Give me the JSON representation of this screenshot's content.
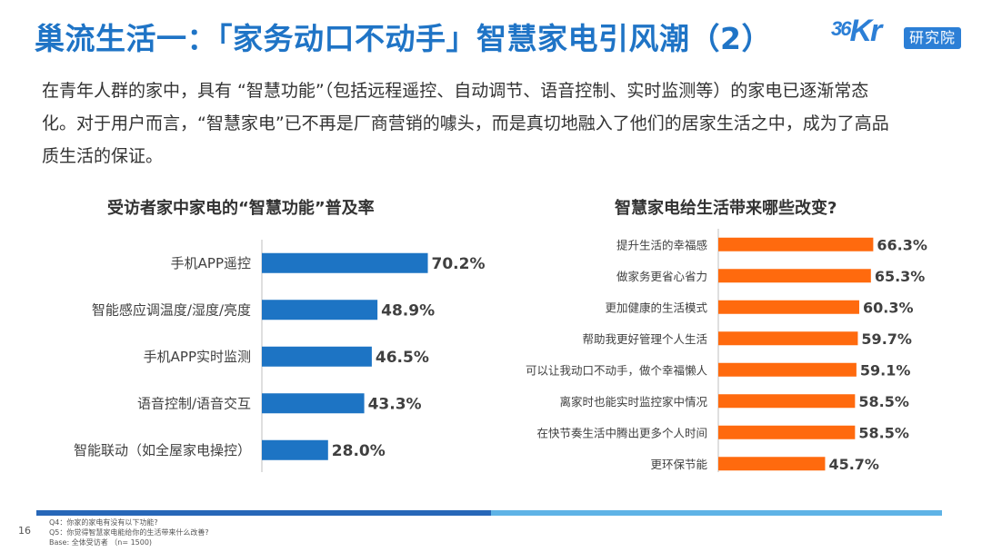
{
  "header": {
    "title": "巢流生活一：「家务动口不动手」智慧家电引风潮（2）",
    "logo_mark_big": "36",
    "logo_mark_kr": "Kr",
    "logo_tag": "研究院"
  },
  "intro": "在青年人群的家中，具有 “智慧功能”（包括远程遥控、自动调节、语音控制、实时监测等）的家电已逐渐常态化。对于用户而言，“智慧家电”已不再是厂商营销的噱头，而是真切地融入了他们的居家生活之中，成为了高品质生活的保证。",
  "colors": {
    "blue_bar": "#1d74c4",
    "orange_bar": "#ff6a0e",
    "title_blue": "#1f74c6"
  },
  "chart_data": [
    {
      "type": "bar",
      "orientation": "horizontal",
      "title": "受访者家中家电的“智慧功能”普及率",
      "categories": [
        "手机APP遥控",
        "智能感应调温度/湿度/亮度",
        "手机APP实时监测",
        "语音控制/语音交互",
        "智能联动（如全屋家电操控）"
      ],
      "values": [
        70.2,
        48.9,
        46.5,
        43.3,
        28.0
      ],
      "labels": [
        "70.2%",
        "48.9%",
        "46.5%",
        "43.3%",
        "28.0%"
      ]
    },
    {
      "type": "bar",
      "orientation": "horizontal",
      "title": "智慧家电给生活带来哪些改变?",
      "categories": [
        "提升生活的幸福感",
        "做家务更省心省力",
        "更加健康的生活模式",
        "帮助我更好管理个人生活",
        "可以让我动口不动手，做个幸福懒人",
        "离家时也能实时监控家中情况",
        "在快节奏生活中腾出更多个人时间",
        "更环保节能"
      ],
      "values": [
        66.3,
        65.3,
        60.3,
        59.7,
        59.1,
        58.5,
        58.5,
        45.7
      ],
      "labels": [
        "66.3%",
        "65.3%",
        "60.3%",
        "59.7%",
        "59.1%",
        "58.5%",
        "58.5%",
        "45.7%"
      ]
    }
  ],
  "footer": {
    "page": "16",
    "notes": [
      "Q4：你家的家电有没有以下功能?",
      "Q5：你觉得智慧家电能给你的生活带来什么改善?",
      "Base: 全体受访者 （n= 1500)"
    ]
  }
}
